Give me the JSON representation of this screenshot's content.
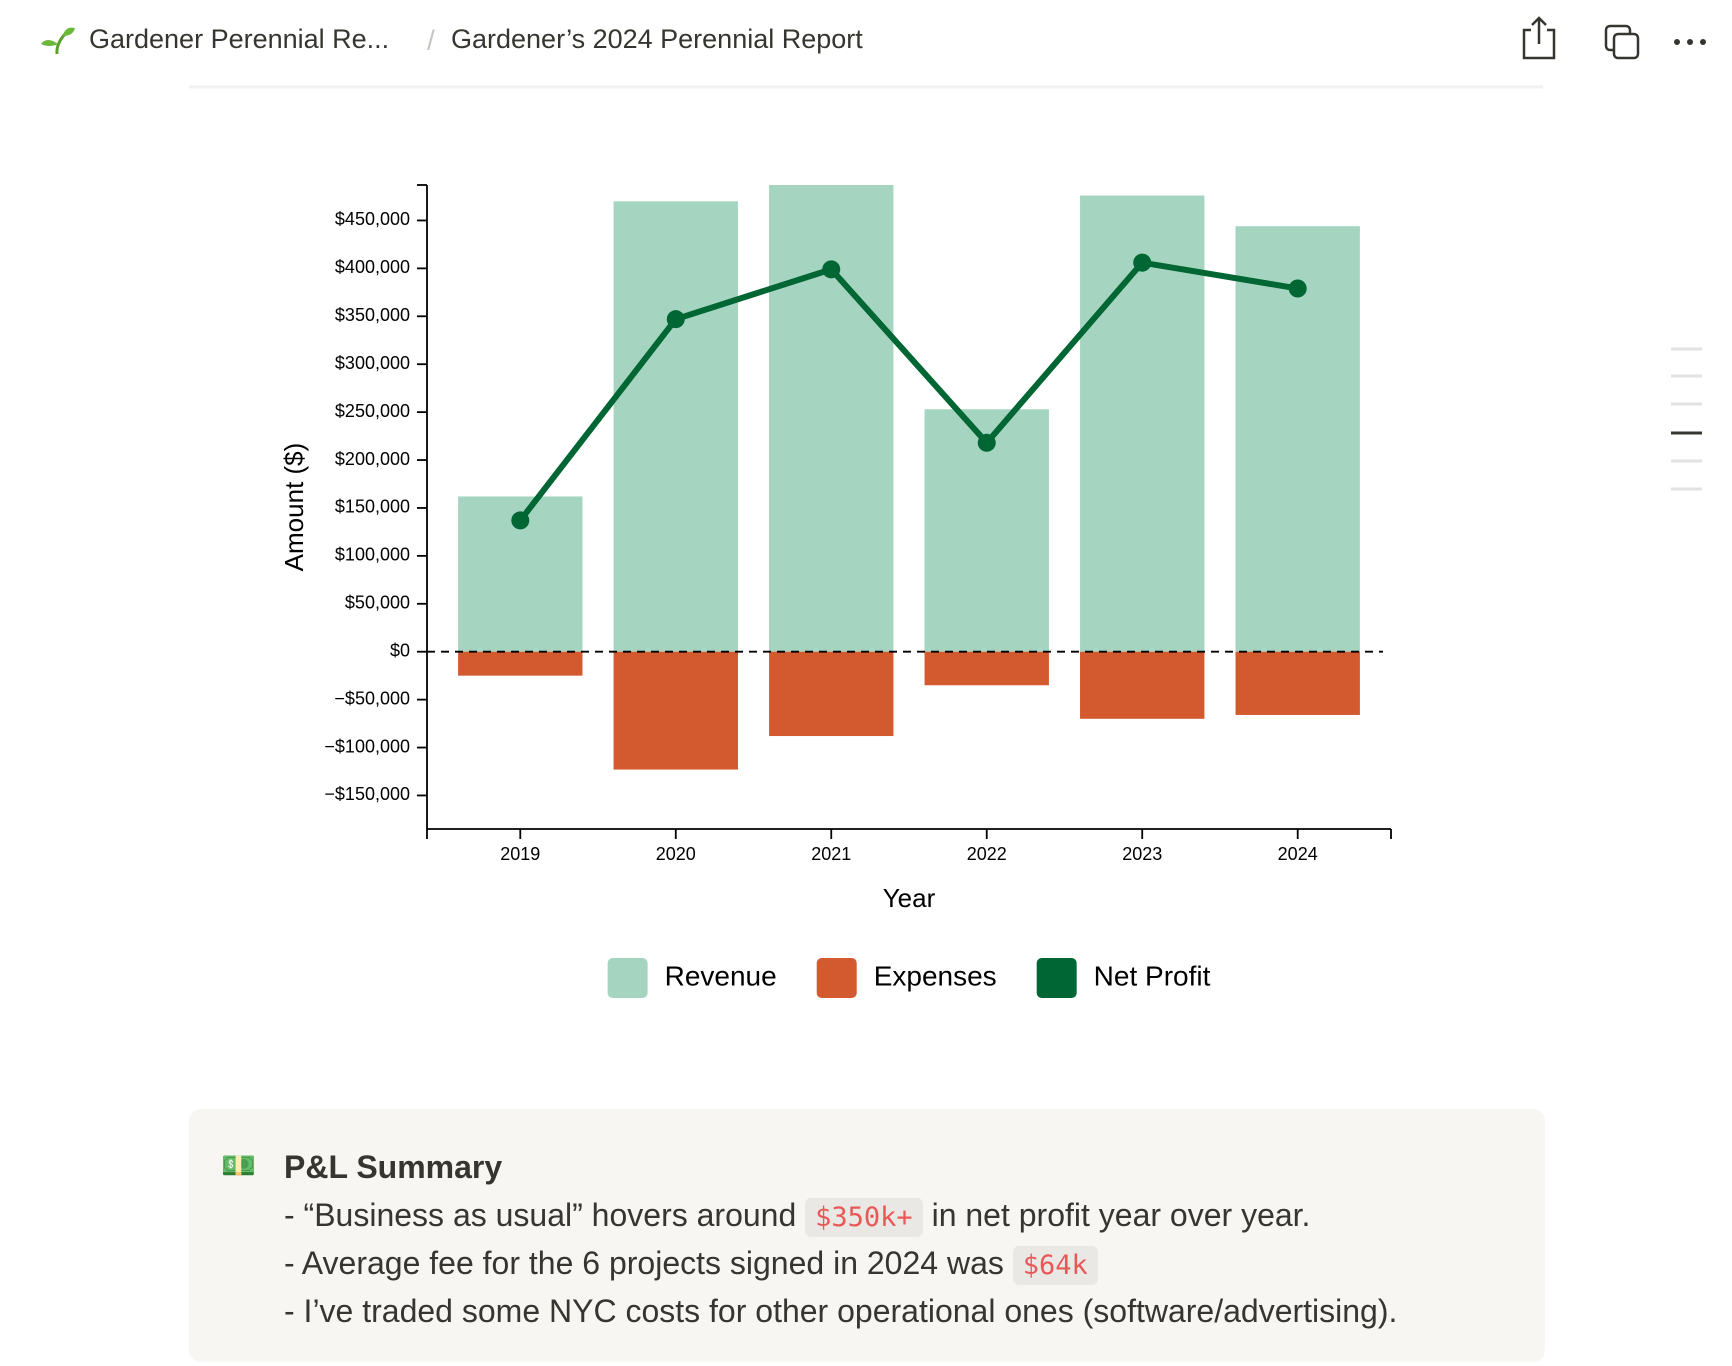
{
  "header": {
    "workspace": "Gardener Perennial Re...",
    "page": "Gardener’s 2024 Perennial Report"
  },
  "chart_data": {
    "type": "bar",
    "x_label": "Year",
    "y_label": "Amount ($)",
    "categories": [
      "2019",
      "2020",
      "2021",
      "2022",
      "2023",
      "2024"
    ],
    "series": [
      {
        "name": "Revenue",
        "color": "#a5d5c0",
        "values": [
          162000,
          470000,
          487000,
          253000,
          476000,
          444000
        ]
      },
      {
        "name": "Expenses",
        "color": "#d35a2f",
        "values": [
          -25000,
          -123000,
          -88000,
          -35000,
          -70000,
          -66000
        ]
      },
      {
        "name": "Net Profit",
        "color": "#006633",
        "type": "line",
        "values": [
          137000,
          347000,
          399000,
          218000,
          406000,
          379000
        ]
      }
    ],
    "ylim": [
      -185000,
      487000
    ],
    "yticks": [
      {
        "value": -150000,
        "label": "−$150,000"
      },
      {
        "value": -100000,
        "label": "−$100,000"
      },
      {
        "value": -50000,
        "label": "−$50,000"
      },
      {
        "value": 0,
        "label": "$0"
      },
      {
        "value": 50000,
        "label": "$50,000"
      },
      {
        "value": 100000,
        "label": "$100,000"
      },
      {
        "value": 150000,
        "label": "$150,000"
      },
      {
        "value": 200000,
        "label": "$200,000"
      },
      {
        "value": 250000,
        "label": "$250,000"
      },
      {
        "value": 300000,
        "label": "$300,000"
      },
      {
        "value": 350000,
        "label": "$350,000"
      },
      {
        "value": 400000,
        "label": "$400,000"
      },
      {
        "value": 450000,
        "label": "$450,000"
      }
    ],
    "zero_line": true,
    "legend": "bottom"
  },
  "callout": {
    "icon": "💵",
    "title": "P&L Summary",
    "lines": [
      [
        "- “Business as usual” hovers around ",
        "$350k+",
        " in net profit year over year."
      ],
      [
        "- Average fee for the 6 projects signed in 2024 was ",
        "$64k"
      ],
      [
        "- I’ve traded some NYC costs for other operational ones (software/advertising)."
      ]
    ]
  }
}
